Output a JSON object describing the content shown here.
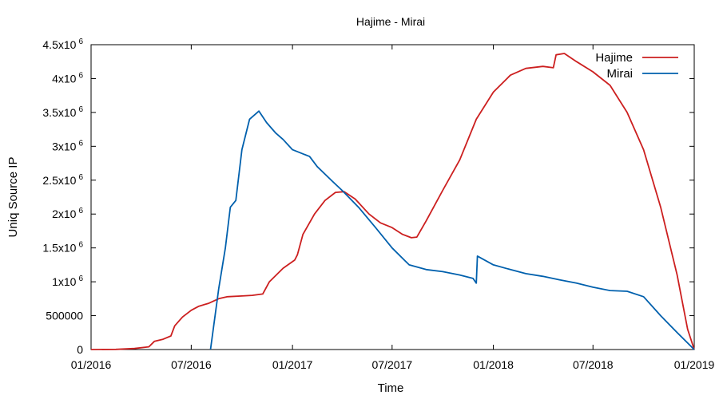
{
  "chart_data": {
    "type": "line",
    "title": "Hajime - Mirai",
    "xlabel": "Time",
    "ylabel": "Uniq Source IP",
    "xlim": [
      "2016-01-01",
      "2019-01-01"
    ],
    "ylim": [
      0,
      4500000
    ],
    "x_ticks": [
      {
        "date": "2016-01-01",
        "label": "01/2016"
      },
      {
        "date": "2016-07-01",
        "label": "07/2016"
      },
      {
        "date": "2017-01-01",
        "label": "01/2017"
      },
      {
        "date": "2017-07-01",
        "label": "07/2017"
      },
      {
        "date": "2018-01-01",
        "label": "01/2018"
      },
      {
        "date": "2018-07-01",
        "label": "07/2018"
      },
      {
        "date": "2019-01-01",
        "label": "01/2019"
      }
    ],
    "y_ticks": [
      {
        "value": 0,
        "base": "0",
        "exp": ""
      },
      {
        "value": 500000,
        "base": "500000",
        "exp": ""
      },
      {
        "value": 1000000,
        "base": "1x10",
        "exp": "6"
      },
      {
        "value": 1500000,
        "base": "1.5x10",
        "exp": "6"
      },
      {
        "value": 2000000,
        "base": "2x10",
        "exp": "6"
      },
      {
        "value": 2500000,
        "base": "2.5x10",
        "exp": "6"
      },
      {
        "value": 3000000,
        "base": "3x10",
        "exp": "6"
      },
      {
        "value": 3500000,
        "base": "3.5x10",
        "exp": "6"
      },
      {
        "value": 4000000,
        "base": "4x10",
        "exp": "6"
      },
      {
        "value": 4500000,
        "base": "4.5x10",
        "exp": "6"
      }
    ],
    "grid": false,
    "legend_position": "top-right",
    "series": [
      {
        "name": "Hajime",
        "color": "#cc1f1f",
        "points": [
          [
            "2016-01-01",
            0
          ],
          [
            "2016-02-15",
            2000
          ],
          [
            "2016-03-20",
            15000
          ],
          [
            "2016-04-15",
            40000
          ],
          [
            "2016-04-25",
            120000
          ],
          [
            "2016-05-10",
            150000
          ],
          [
            "2016-05-25",
            200000
          ],
          [
            "2016-06-01",
            350000
          ],
          [
            "2016-06-15",
            480000
          ],
          [
            "2016-07-01",
            580000
          ],
          [
            "2016-07-15",
            640000
          ],
          [
            "2016-08-01",
            680000
          ],
          [
            "2016-08-20",
            750000
          ],
          [
            "2016-09-05",
            780000
          ],
          [
            "2016-10-01",
            790000
          ],
          [
            "2016-10-20",
            800000
          ],
          [
            "2016-11-08",
            820000
          ],
          [
            "2016-11-20",
            1000000
          ],
          [
            "2016-12-15",
            1200000
          ],
          [
            "2017-01-05",
            1320000
          ],
          [
            "2017-01-10",
            1400000
          ],
          [
            "2017-01-20",
            1700000
          ],
          [
            "2017-02-10",
            2000000
          ],
          [
            "2017-03-01",
            2200000
          ],
          [
            "2017-03-20",
            2320000
          ],
          [
            "2017-04-05",
            2330000
          ],
          [
            "2017-04-25",
            2220000
          ],
          [
            "2017-05-20",
            2000000
          ],
          [
            "2017-06-10",
            1870000
          ],
          [
            "2017-07-01",
            1800000
          ],
          [
            "2017-07-20",
            1700000
          ],
          [
            "2017-08-05",
            1650000
          ],
          [
            "2017-08-15",
            1660000
          ],
          [
            "2017-09-01",
            1900000
          ],
          [
            "2017-10-01",
            2350000
          ],
          [
            "2017-11-01",
            2800000
          ],
          [
            "2017-12-01",
            3400000
          ],
          [
            "2018-01-01",
            3800000
          ],
          [
            "2018-02-01",
            4050000
          ],
          [
            "2018-03-01",
            4150000
          ],
          [
            "2018-04-01",
            4180000
          ],
          [
            "2018-04-20",
            4160000
          ],
          [
            "2018-04-25",
            4350000
          ],
          [
            "2018-05-10",
            4370000
          ],
          [
            "2018-06-01",
            4250000
          ],
          [
            "2018-07-01",
            4100000
          ],
          [
            "2018-08-01",
            3900000
          ],
          [
            "2018-09-01",
            3500000
          ],
          [
            "2018-10-01",
            2950000
          ],
          [
            "2018-11-01",
            2100000
          ],
          [
            "2018-12-01",
            1100000
          ],
          [
            "2018-12-20",
            300000
          ],
          [
            "2019-01-01",
            0
          ]
        ]
      },
      {
        "name": "Mirai",
        "color": "#0060ad",
        "points": [
          [
            "2016-08-05",
            0
          ],
          [
            "2016-08-20",
            900000
          ],
          [
            "2016-09-01",
            1500000
          ],
          [
            "2016-09-10",
            2100000
          ],
          [
            "2016-09-20",
            2200000
          ],
          [
            "2016-10-01",
            2950000
          ],
          [
            "2016-10-15",
            3400000
          ],
          [
            "2016-11-01",
            3520000
          ],
          [
            "2016-11-15",
            3350000
          ],
          [
            "2016-12-01",
            3200000
          ],
          [
            "2016-12-15",
            3100000
          ],
          [
            "2017-01-01",
            2950000
          ],
          [
            "2017-02-01",
            2850000
          ],
          [
            "2017-02-15",
            2700000
          ],
          [
            "2017-03-15",
            2480000
          ],
          [
            "2017-04-01",
            2350000
          ],
          [
            "2017-05-01",
            2100000
          ],
          [
            "2017-06-01",
            1800000
          ],
          [
            "2017-07-01",
            1500000
          ],
          [
            "2017-08-01",
            1250000
          ],
          [
            "2017-09-01",
            1180000
          ],
          [
            "2017-10-01",
            1150000
          ],
          [
            "2017-11-01",
            1100000
          ],
          [
            "2017-11-25",
            1050000
          ],
          [
            "2017-12-01",
            980000
          ],
          [
            "2017-12-03",
            1380000
          ],
          [
            "2018-01-01",
            1250000
          ],
          [
            "2018-02-01",
            1180000
          ],
          [
            "2018-03-01",
            1120000
          ],
          [
            "2018-04-01",
            1080000
          ],
          [
            "2018-05-01",
            1030000
          ],
          [
            "2018-06-01",
            980000
          ],
          [
            "2018-07-01",
            920000
          ],
          [
            "2018-08-01",
            870000
          ],
          [
            "2018-09-01",
            860000
          ],
          [
            "2018-10-01",
            780000
          ],
          [
            "2018-11-01",
            500000
          ],
          [
            "2018-12-01",
            250000
          ],
          [
            "2019-01-01",
            0
          ]
        ]
      }
    ]
  }
}
